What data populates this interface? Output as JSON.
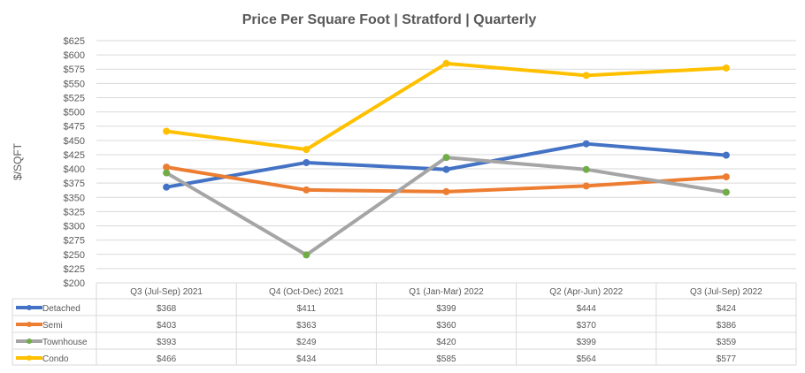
{
  "chart_data": {
    "type": "line",
    "title": "Price Per Square Foot | Stratford | Quarterly",
    "ylabel": "$/SQFT",
    "xlabel": "",
    "ylim": [
      200,
      625
    ],
    "ytick_step": 25,
    "ytick_prefix": "$",
    "grid": true,
    "legend": "data table left",
    "categories": [
      "Q3 (Jul-Sep) 2021",
      "Q4 (Oct-Dec) 2021",
      "Q1 (Jan-Mar) 2022",
      "Q2 (Apr-Jun) 2022",
      "Q3 (Jul-Sep) 2022"
    ],
    "series": [
      {
        "name": "Detached",
        "values": [
          368,
          411,
          399,
          444,
          424
        ],
        "color": "#4472C4",
        "marker_color": "#4472C4"
      },
      {
        "name": "Semi",
        "values": [
          403,
          363,
          360,
          370,
          386
        ],
        "color": "#ED7D31",
        "marker_color": "#ED7D31"
      },
      {
        "name": "Townhouse",
        "values": [
          393,
          249,
          420,
          399,
          359
        ],
        "color": "#A5A5A5",
        "marker_color": "#70AD47"
      },
      {
        "name": "Condo",
        "values": [
          466,
          434,
          585,
          564,
          577
        ],
        "color": "#FFC000",
        "marker_color": "#FFC000"
      }
    ]
  }
}
